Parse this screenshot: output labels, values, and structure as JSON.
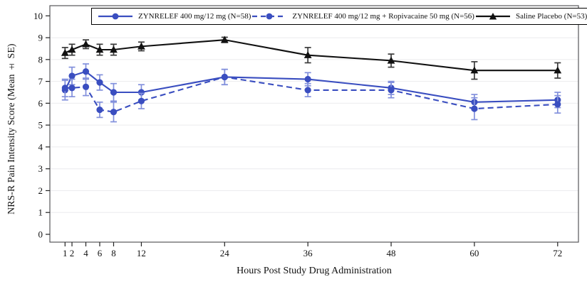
{
  "figure": {
    "xlabel": "Hours Post Study Drug Administration",
    "ylabel": "NRS-R Pain Intensity Score (Mean ± SE)"
  },
  "colors": {
    "zynrelef_blue": "#3A4EC0",
    "zynrelef_errorbar_blue": "#8290DC",
    "placebo_black": "#111111",
    "placebo_errorbar": "#3a3a3a",
    "gridline": "#ebebee",
    "axis": "#58585a"
  },
  "chart_data": {
    "type": "line",
    "title": "",
    "xlabel": "Hours Post Study Drug Administration",
    "ylabel": "NRS-R Pain Intensity Score (Mean ± SE)",
    "x": [
      1,
      2,
      4,
      6,
      8,
      12,
      24,
      36,
      48,
      60,
      72
    ],
    "xticklabels": [
      "1",
      "2",
      "4",
      "6",
      "8",
      "12",
      "24",
      "36",
      "48",
      "60",
      "72"
    ],
    "yticks": [
      0,
      1,
      2,
      3,
      4,
      5,
      6,
      7,
      8,
      9,
      10
    ],
    "ylim": [
      0,
      10
    ],
    "grid": "faint horizontal gridlines at integer values",
    "legend_position": "top inside plot, boxed, horizontal",
    "error_bars": "mean ± SE caps on every point",
    "series": [
      {
        "name": "ZYNRELEF 400 mg/12 mg (N=58)",
        "line_style": "solid",
        "marker": "circle",
        "color": "#3A4EC0",
        "values": [
          6.6,
          7.25,
          7.45,
          6.95,
          6.5,
          6.5,
          7.2,
          7.1,
          6.7,
          6.05,
          6.15
        ],
        "se": [
          0.45,
          0.4,
          0.35,
          0.35,
          0.4,
          0.35,
          0.35,
          0.3,
          0.3,
          0.35,
          0.35
        ]
      },
      {
        "name": "ZYNRELEF 400 mg/12 mg + Ropivacaine 50 mg (N=56)",
        "line_style": "dashed",
        "marker": "circle",
        "color": "#3A4EC0",
        "values": [
          6.7,
          6.7,
          6.75,
          5.7,
          5.6,
          6.1,
          7.2,
          6.6,
          6.6,
          5.75,
          5.95
        ],
        "se": [
          0.4,
          0.4,
          0.4,
          0.35,
          0.45,
          0.35,
          0.35,
          0.3,
          0.35,
          0.5,
          0.4
        ]
      },
      {
        "name": "Saline Placebo (N=53)",
        "line_style": "solid",
        "marker": "triangle",
        "color": "#111111",
        "values": [
          8.3,
          8.45,
          8.7,
          8.45,
          8.45,
          8.6,
          8.9,
          8.2,
          7.95,
          7.5,
          7.5
        ],
        "se": [
          0.25,
          0.25,
          0.2,
          0.25,
          0.25,
          0.2,
          0.12,
          0.35,
          0.3,
          0.4,
          0.35
        ]
      }
    ]
  }
}
